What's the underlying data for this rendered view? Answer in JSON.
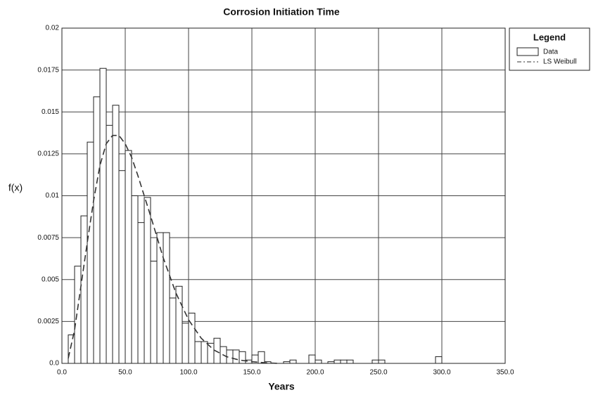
{
  "chart_data": {
    "type": "histogram",
    "title": "Corrosion Initiation Time",
    "xlabel": "Years",
    "ylabel": "f(x)",
    "legend_title": "Legend",
    "legend": "outside-right",
    "grid": true,
    "bins": [
      5,
      10,
      15,
      20,
      25,
      30,
      35,
      40,
      45,
      50,
      55,
      60,
      65,
      70,
      75,
      80,
      85,
      90,
      95,
      100,
      105,
      110,
      115,
      120,
      125,
      130,
      135,
      140,
      145,
      150,
      155,
      160,
      165,
      170,
      175,
      180,
      185,
      190,
      195,
      200,
      205,
      210,
      215,
      220,
      225,
      230,
      235,
      240,
      245,
      250,
      255,
      260,
      265,
      270,
      275,
      280,
      285,
      290,
      295,
      300
    ],
    "series": [
      {
        "name": "Data",
        "color": "#ffffff",
        "values": [
          0.0017,
          0.0058,
          0.0088,
          0.0132,
          0.0159,
          0.0176,
          0.0142,
          0.0154,
          0.0115,
          0.0127,
          0.01,
          0.0084,
          0.0099,
          0.0061,
          0.0078,
          0.0078,
          0.0039,
          0.0046,
          0.0024,
          0.003,
          0.0013,
          0.0013,
          0.0012,
          0.0015,
          0.001,
          0.0008,
          0.0008,
          0.0007,
          0.0002,
          0.0005,
          0.0007,
          0.0001,
          0,
          0,
          0.0001,
          0.0002,
          0,
          0,
          0.0005,
          0.0002,
          0,
          0.0001,
          0.0002,
          0.0002,
          0.0002,
          0,
          0,
          0,
          0.0002,
          0.0002,
          0,
          0,
          0,
          0,
          0,
          0,
          0,
          0,
          0.0004
        ]
      }
    ],
    "line": {
      "name": "LS Weibull",
      "color": "#333333",
      "x": [
        5,
        10,
        15,
        20,
        25,
        30,
        35,
        40,
        45,
        50,
        55,
        60,
        70,
        80,
        90,
        100,
        110,
        120,
        130,
        140,
        150,
        160,
        170
      ],
      "values": [
        0.0003,
        0.002,
        0.0046,
        0.0072,
        0.0097,
        0.0118,
        0.0131,
        0.0136,
        0.0136,
        0.0131,
        0.0123,
        0.0112,
        0.0088,
        0.0063,
        0.0042,
        0.0026,
        0.0015,
        0.0008,
        0.0004,
        0.0002,
        0.0001,
        4e-05,
        0
      ]
    },
    "xlim": [
      0,
      350
    ],
    "ylim": [
      0,
      0.02
    ],
    "xticks": [
      {
        "value": 0,
        "label": "0.0"
      },
      {
        "value": 50,
        "label": "50.0"
      },
      {
        "value": 100,
        "label": "100.0"
      },
      {
        "value": 150,
        "label": "150.0"
      },
      {
        "value": 200,
        "label": "200.0"
      },
      {
        "value": 250,
        "label": "250.0"
      },
      {
        "value": 300,
        "label": "300.0"
      },
      {
        "value": 350,
        "label": "350.0"
      }
    ],
    "yticks": [
      {
        "value": 0,
        "label": "0.0"
      },
      0.0025,
      0.005,
      0.0075,
      0.01,
      0.0125,
      0.015,
      0.0175,
      0.02
    ]
  }
}
